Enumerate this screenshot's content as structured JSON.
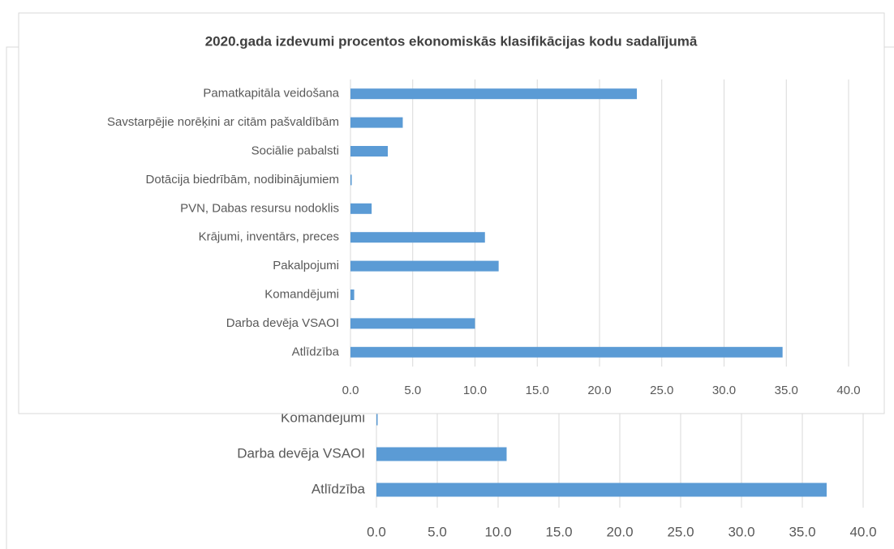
{
  "chart_data": [
    {
      "type": "bar",
      "orientation": "horizontal",
      "title": "2020.gada  izdevumi procentos ekonomiskās klasifikācijas kodu sadalījumā",
      "categories": [
        "Pamatkapitāla veidošana",
        "Savstarpējie norēķini ar citām pašvaldībām",
        "Sociālie pabalsti",
        "Dotācija biedrībām, nodibinājumiem",
        "PVN, Dabas resursu nodoklis",
        "Krājumi, inventārs, preces",
        "Pakalpojumi",
        "Komandējumi",
        "Darba devēja VSAOI",
        "Atlīdzība"
      ],
      "values": [
        23.0,
        4.2,
        3.0,
        0.1,
        1.7,
        10.8,
        11.9,
        0.3,
        10.0,
        34.7
      ],
      "color": "#5b9bd5",
      "xlim": [
        0,
        40
      ],
      "xticks": [
        {
          "value": 0,
          "label": "0.0"
        },
        {
          "value": 5,
          "label": "5.0"
        },
        {
          "value": 10,
          "label": "10.0"
        },
        {
          "value": 15,
          "label": "15.0"
        },
        {
          "value": 20,
          "label": "20.0"
        },
        {
          "value": 25,
          "label": "25.0"
        },
        {
          "value": 30,
          "label": "30.0"
        },
        {
          "value": 35,
          "label": "35.0"
        },
        {
          "value": 40,
          "label": "40.0"
        }
      ],
      "grid": true
    },
    {
      "type": "bar",
      "orientation": "horizontal",
      "categories": [
        "Komandējumi",
        "Darba devēja VSAOI",
        "Atlīdzība"
      ],
      "values": [
        0.1,
        10.7,
        37.0
      ],
      "color": "#5b9bd5",
      "xlim": [
        0,
        40
      ],
      "xticks": [
        {
          "value": 0,
          "label": "0.0"
        },
        {
          "value": 5,
          "label": "5.0"
        },
        {
          "value": 10,
          "label": "10.0"
        },
        {
          "value": 15,
          "label": "15.0"
        },
        {
          "value": 20,
          "label": "20.0"
        },
        {
          "value": 25,
          "label": "25.0"
        },
        {
          "value": 30,
          "label": "30.0"
        },
        {
          "value": 35,
          "label": "35.0"
        },
        {
          "value": 40,
          "label": "40.0"
        }
      ],
      "grid": true
    }
  ]
}
